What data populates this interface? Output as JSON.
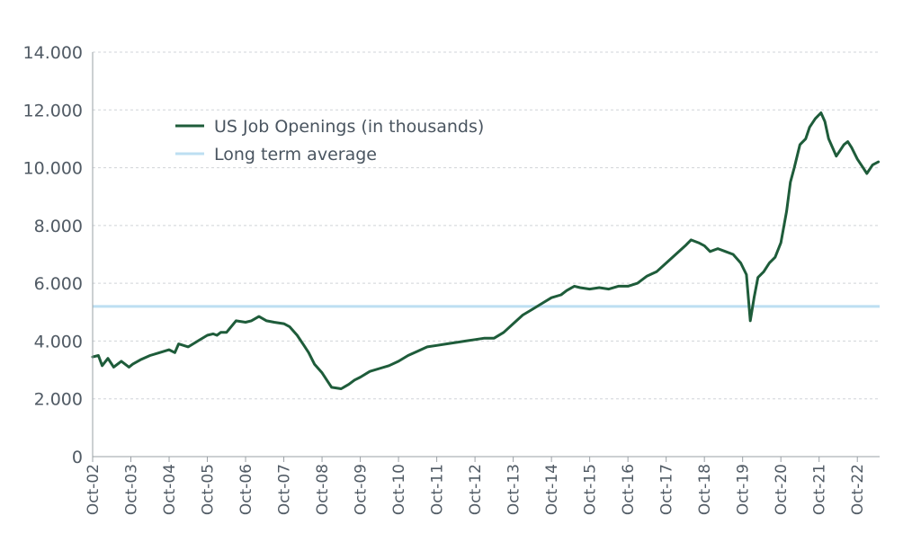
{
  "chart_data": {
    "type": "line",
    "title": "",
    "xlabel": "",
    "ylabel": "",
    "ylim": [
      0,
      14000
    ],
    "yticks": [
      0,
      2000,
      4000,
      6000,
      8000,
      10000,
      12000,
      14000
    ],
    "ytick_labels": [
      "0",
      "2.000",
      "4.000",
      "6.000",
      "8.000",
      "10.000",
      "12.000",
      "14.000"
    ],
    "xlim": [
      2002.75,
      2023.333
    ],
    "xticks": [
      2002.75,
      2003.75,
      2004.75,
      2005.75,
      2006.75,
      2007.75,
      2008.75,
      2009.75,
      2010.75,
      2011.75,
      2012.75,
      2013.75,
      2014.75,
      2015.75,
      2016.75,
      2017.75,
      2018.75,
      2019.75,
      2020.75,
      2021.75,
      2022.75
    ],
    "xtick_labels": [
      "Oct-02",
      "Oct-03",
      "Oct-04",
      "Oct-05",
      "Oct-06",
      "Oct-07",
      "Oct-08",
      "Oct-09",
      "Oct-10",
      "Oct-11",
      "Oct-12",
      "Oct-13",
      "Oct-14",
      "Oct-15",
      "Oct-16",
      "Oct-17",
      "Oct-18",
      "Oct-19",
      "Oct-20",
      "Oct-21",
      "Oct-22"
    ],
    "grid": true,
    "legend_position": "upper-left",
    "series": [
      {
        "name": "US Job Openings (in thousands)",
        "color": "#1e5c3a",
        "x": [
          2002.75,
          2002.9,
          2003.0,
          2003.15,
          2003.3,
          2003.5,
          2003.7,
          2003.8,
          2004.0,
          2004.25,
          2004.5,
          2004.75,
          2004.9,
          2005.0,
          2005.25,
          2005.5,
          2005.75,
          2005.9,
          2006.0,
          2006.1,
          2006.25,
          2006.5,
          2006.75,
          2006.9,
          2007.1,
          2007.3,
          2007.5,
          2007.75,
          2007.9,
          2008.1,
          2008.25,
          2008.4,
          2008.55,
          2008.75,
          2008.9,
          2009.0,
          2009.25,
          2009.45,
          2009.6,
          2009.75,
          2010.0,
          2010.25,
          2010.5,
          2010.75,
          2011.0,
          2011.25,
          2011.5,
          2011.75,
          2012.0,
          2012.25,
          2012.5,
          2012.75,
          2013.0,
          2013.25,
          2013.5,
          2013.75,
          2014.0,
          2014.25,
          2014.5,
          2014.75,
          2015.0,
          2015.15,
          2015.35,
          2015.5,
          2015.75,
          2016.0,
          2016.25,
          2016.5,
          2016.75,
          2017.0,
          2017.25,
          2017.5,
          2017.75,
          2018.0,
          2018.25,
          2018.4,
          2018.6,
          2018.75,
          2018.9,
          2019.1,
          2019.3,
          2019.5,
          2019.7,
          2019.85,
          2019.95,
          2020.05,
          2020.15,
          2020.3,
          2020.45,
          2020.6,
          2020.75,
          2020.9,
          2021.0,
          2021.1,
          2021.25,
          2021.4,
          2021.5,
          2021.65,
          2021.8,
          2021.9,
          2022.0,
          2022.1,
          2022.2,
          2022.3,
          2022.4,
          2022.5,
          2022.6,
          2022.75,
          2022.9,
          2023.0,
          2023.15,
          2023.3
        ],
        "values": [
          3450,
          3500,
          3150,
          3400,
          3100,
          3300,
          3100,
          3200,
          3350,
          3500,
          3600,
          3700,
          3600,
          3900,
          3800,
          4000,
          4200,
          4250,
          4200,
          4300,
          4300,
          4700,
          4650,
          4700,
          4850,
          4700,
          4650,
          4600,
          4500,
          4200,
          3900,
          3600,
          3200,
          2900,
          2600,
          2400,
          2350,
          2500,
          2650,
          2750,
          2950,
          3050,
          3150,
          3300,
          3500,
          3650,
          3800,
          3850,
          3900,
          3950,
          4000,
          4050,
          4100,
          4100,
          4300,
          4600,
          4900,
          5100,
          5300,
          5500,
          5600,
          5750,
          5900,
          5850,
          5800,
          5850,
          5800,
          5900,
          5900,
          6000,
          6250,
          6400,
          6700,
          7000,
          7300,
          7500,
          7400,
          7300,
          7100,
          7200,
          7100,
          7000,
          6700,
          6300,
          4700,
          5500,
          6200,
          6400,
          6700,
          6900,
          7400,
          8500,
          9500,
          10000,
          10800,
          11000,
          11400,
          11700,
          11900,
          11600,
          11000,
          10700,
          10400,
          10600,
          10800,
          10900,
          10700,
          10300,
          10000,
          9800,
          10100,
          10200
        ]
      },
      {
        "name": "Long term average",
        "color": "#bddff2",
        "value": 5200
      }
    ]
  }
}
